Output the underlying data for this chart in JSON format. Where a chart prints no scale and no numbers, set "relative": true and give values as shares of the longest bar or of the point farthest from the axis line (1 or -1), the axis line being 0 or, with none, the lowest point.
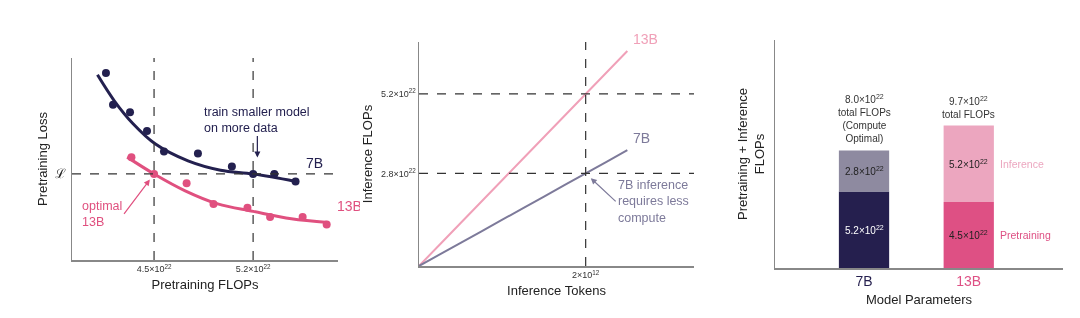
{
  "chart_data": [
    {
      "type": "scatter",
      "xlabel": "Pretraining FLOPs",
      "ylabel": "Pretraining Loss",
      "relative": true,
      "xlim": [
        3.92e+22,
        5.8e+22
      ],
      "xticks": [
        {
          "value": 4.5e+22,
          "label": "4.5×10$^{22}$"
        },
        {
          "value": 5.2e+22,
          "label": "5.2×10$^{22}$"
        }
      ],
      "grid": false,
      "legend": false,
      "marker": "circle",
      "series": [
        {
          "type": "scatter",
          "name": "7B",
          "color": "#23204f",
          "x": [
            4.16e+22,
            4.21e+22,
            4.33e+22,
            4.45e+22,
            4.57e+22,
            4.81e+22,
            5.05e+22,
            5.2e+22,
            5.35e+22,
            5.5e+22
          ],
          "values": [
            1.0,
            0.83,
            0.79,
            0.69,
            0.58,
            0.57,
            0.5,
            0.46,
            0.46,
            0.42
          ]
        },
        {
          "type": "scatter",
          "name": "13B",
          "color": "#e0507f",
          "x": [
            4.34e+22,
            4.5e+22,
            4.73e+22,
            4.92e+22,
            5.16e+22,
            5.32e+22,
            5.55e+22,
            5.72e+22
          ],
          "values": [
            0.55,
            0.46,
            0.41,
            0.3,
            0.28,
            0.23,
            0.23,
            0.19
          ]
        },
        {
          "type": "line",
          "marker": "none",
          "color": "#23204f",
          "x": [
            4.1e+22,
            4.22e+22,
            4.35e+22,
            4.51e+22,
            4.74e+22,
            4.97e+22,
            5.2e+22,
            5.5e+22
          ],
          "values": [
            0.99,
            0.85,
            0.73,
            0.62,
            0.53,
            0.48,
            0.46,
            0.42
          ]
        },
        {
          "type": "line",
          "marker": "none",
          "color": "#e0507f",
          "x": [
            4.31e+22,
            4.5e+22,
            4.72e+22,
            4.95e+22,
            5.2e+22,
            5.47e+22,
            5.73e+22
          ],
          "values": [
            0.55,
            0.46,
            0.37,
            0.3,
            0.26,
            0.22,
            0.2
          ]
        }
      ],
      "ref_lines": [
        {
          "axis": "x",
          "value": 4.5e+22,
          "line_style": "dashed"
        },
        {
          "axis": "x",
          "value": 5.2e+22,
          "line_style": "dashed"
        },
        {
          "axis": "y",
          "value": 0.46,
          "label": "ℒ",
          "line_style": "dashed"
        }
      ],
      "annotations": [
        {
          "text": "train smaller model\non more data",
          "x": 5.23e+22,
          "y": 0.51
        },
        {
          "text": "optimal\n13B",
          "x": 4.5e+22,
          "y": 0.46
        }
      ]
    },
    {
      "type": "line",
      "xlabel": "Inference Tokens",
      "ylabel": "Inference FLOPs",
      "categories": [
        null,
        null,
        null,
        null,
        null,
        null,
        null,
        null,
        "2×10$^{12}$",
        null,
        null
      ],
      "ylim": [
        0,
        6.77e+22
      ],
      "yticks": [
        {
          "value": 2.8e+22,
          "label": "2.8×10$^{22}$"
        },
        {
          "value": 5.2e+22,
          "label": "5.2×10$^{22}$"
        }
      ],
      "grid": false,
      "legend": false,
      "marker": "none",
      "series": [
        {
          "name": "13B",
          "color": "#f0a0b8",
          "values": [
            0,
            6.5e+21,
            1.3e+22,
            1.95e+22,
            2.6e+22,
            3.25e+22,
            3.9e+22,
            4.55e+22,
            5.2e+22,
            5.85e+22,
            6.5e+22
          ]
        },
        {
          "name": "7B",
          "color": "#7d7a9a",
          "values": [
            0,
            3.5e+21,
            7e+21,
            1.05e+22,
            1.4e+22,
            1.75e+22,
            2.1e+22,
            2.45e+22,
            2.8e+22,
            3.15e+22,
            3.5e+22
          ]
        }
      ],
      "ref_lines": [
        {
          "axis": "x",
          "value": "2×10$^{12}$",
          "line_style": "dashed"
        },
        {
          "axis": "y",
          "value": 2.8e+22,
          "line_style": "dashed"
        },
        {
          "axis": "y",
          "value": 5.2e+22,
          "line_style": "dashed"
        }
      ],
      "annotations": [
        {
          "text": "7B inference\nrequires less\ncompute",
          "x": "2×10$^{12}$",
          "y": 2.8e+22
        }
      ]
    },
    {
      "type": "bar",
      "stacked": true,
      "categories": [
        "7B",
        "13B"
      ],
      "xlabel": "Model Parameters",
      "ylabel": "Pretraining + Inference\nFLOPs",
      "tick_labels": "x",
      "grid": false,
      "legend": false,
      "series": [
        {
          "name": "Pretraining",
          "colors": [
            "#251f4e",
            "#de5084"
          ],
          "values": [
            5.2e+22,
            4.5e+22
          ],
          "value_labels": [
            "5.2×10$^{22}$",
            "4.5×10$^{22}$"
          ]
        },
        {
          "name": "Inference",
          "colors": [
            "#8e8aa0",
            "#eca6bf"
          ],
          "values": [
            2.8e+22,
            5.2e+22
          ],
          "value_labels": [
            "2.8×10$^{22}$",
            "5.2×10$^{22}$"
          ]
        }
      ],
      "totals": [
        "8.0×10$^{22}$\ntotal FLOPs\n(Compute\nOptimal)",
        "9.7×10$^{22}$\ntotal FLOPs"
      ]
    }
  ]
}
